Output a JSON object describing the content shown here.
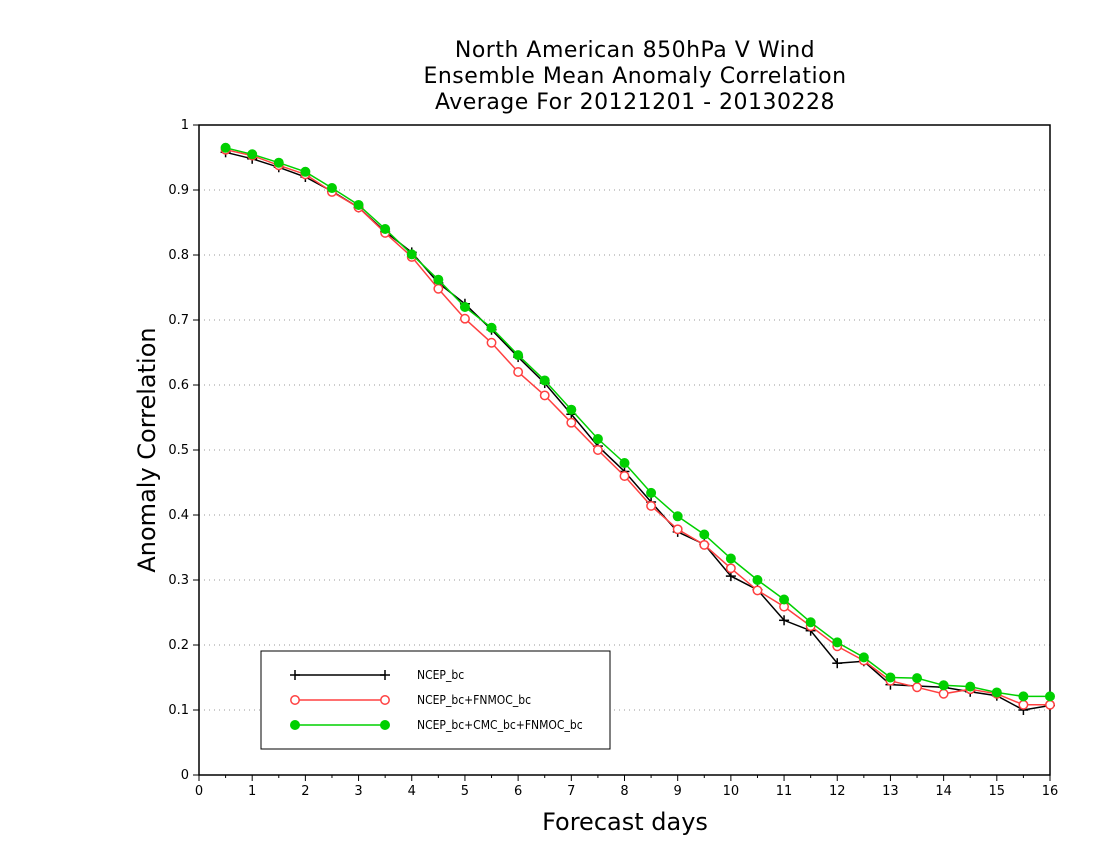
{
  "chart_data": {
    "type": "line",
    "title": [
      "North American 850hPa V Wind",
      "Ensemble Mean Anomaly Correlation",
      "Average For 20121201 - 20130228"
    ],
    "xlabel": "Forecast days",
    "ylabel": "Anomaly Correlation",
    "xlim": [
      0,
      16
    ],
    "ylim": [
      0,
      1
    ],
    "xticks": [
      "0",
      "1",
      "2",
      "3",
      "4",
      "5",
      "6",
      "7",
      "8",
      "9",
      "10",
      "11",
      "12",
      "13",
      "14",
      "15",
      "16"
    ],
    "yticks": [
      "0",
      "0.1",
      "0.2",
      "0.3",
      "0.4",
      "0.5",
      "0.6",
      "0.7",
      "0.8",
      "0.9",
      "1"
    ],
    "grid": "horizontal dotted",
    "legend_position": "bottom-left",
    "x": [
      0.5,
      1,
      1.5,
      2,
      2.5,
      3,
      3.5,
      4,
      4.5,
      5,
      5.5,
      6,
      6.5,
      7,
      7.5,
      8,
      8.5,
      9,
      9.5,
      10,
      10.5,
      11,
      11.5,
      12,
      12.5,
      13,
      13.5,
      14,
      14.5,
      15,
      15.5,
      16
    ],
    "series": [
      {
        "name": "NCEP_bc",
        "color": "#000000",
        "marker": "plus",
        "values": [
          0.958,
          0.948,
          0.935,
          0.92,
          0.898,
          0.873,
          0.836,
          0.804,
          0.757,
          0.725,
          0.685,
          0.643,
          0.603,
          0.555,
          0.506,
          0.467,
          0.42,
          0.374,
          0.355,
          0.306,
          0.285,
          0.238,
          0.222,
          0.172,
          0.175,
          0.139,
          0.137,
          0.135,
          0.128,
          0.122,
          0.1,
          0.107
        ]
      },
      {
        "name": "NCEP_bc+FNMOC_bc",
        "color": "#ff4040",
        "marker": "open-circle",
        "values": [
          0.962,
          0.953,
          0.938,
          0.924,
          0.897,
          0.873,
          0.834,
          0.797,
          0.748,
          0.702,
          0.665,
          0.62,
          0.584,
          0.542,
          0.5,
          0.46,
          0.414,
          0.378,
          0.354,
          0.318,
          0.284,
          0.259,
          0.229,
          0.198,
          0.176,
          0.145,
          0.135,
          0.125,
          0.132,
          0.125,
          0.108,
          0.108
        ]
      },
      {
        "name": "NCEP_bc+CMC_bc+FNMOC_bc",
        "color": "#00d000",
        "marker": "filled-circle",
        "values": [
          0.965,
          0.955,
          0.942,
          0.928,
          0.903,
          0.877,
          0.84,
          0.801,
          0.762,
          0.72,
          0.688,
          0.646,
          0.607,
          0.562,
          0.517,
          0.48,
          0.434,
          0.398,
          0.37,
          0.333,
          0.3,
          0.27,
          0.235,
          0.204,
          0.181,
          0.15,
          0.149,
          0.138,
          0.136,
          0.127,
          0.121,
          0.121
        ]
      }
    ]
  }
}
